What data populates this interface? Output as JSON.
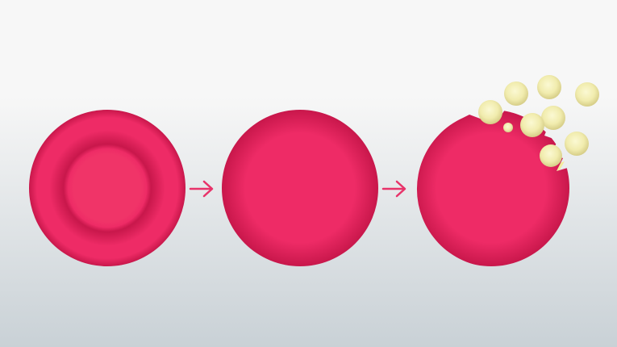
{
  "diagram": {
    "stages": [
      {
        "id": "normal-cell",
        "state": "biconcave red blood cell with pale center"
      },
      {
        "id": "swollen-cell",
        "state": "swollen spherical red blood cell"
      },
      {
        "id": "ruptured-cell",
        "state": "ruptured red blood cell releasing contents"
      }
    ],
    "released_particles": 9,
    "colors": {
      "background_top": "#f7f7f7",
      "background_bottom": "#c9d1d6",
      "cell_core": "#ee2b66",
      "cell_edge": "#c8174b",
      "center_disc": "#f03468",
      "arrow": "#e8336a",
      "particle_light": "#fbf9d3",
      "particle_mid": "#f1ecae",
      "particle_edge": "#d6cd87",
      "shard": "#f3eca0"
    },
    "icons": [
      "arrow-right-icon",
      "arrow-right-icon"
    ]
  }
}
